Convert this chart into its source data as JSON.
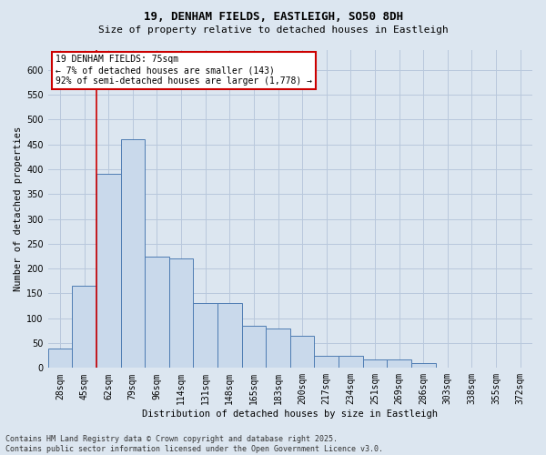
{
  "title": "19, DENHAM FIELDS, EASTLEIGH, SO50 8DH",
  "subtitle": "Size of property relative to detached houses in Eastleigh",
  "xlabel": "Distribution of detached houses by size in Eastleigh",
  "ylabel": "Number of detached properties",
  "categories": [
    "28sqm",
    "45sqm",
    "62sqm",
    "79sqm",
    "96sqm",
    "114sqm",
    "131sqm",
    "148sqm",
    "165sqm",
    "183sqm",
    "200sqm",
    "217sqm",
    "234sqm",
    "251sqm",
    "269sqm",
    "286sqm",
    "303sqm",
    "338sqm",
    "355sqm",
    "372sqm"
  ],
  "values": [
    40,
    165,
    390,
    460,
    225,
    220,
    130,
    130,
    85,
    80,
    65,
    25,
    25,
    18,
    18,
    10,
    0,
    0,
    0,
    0
  ],
  "bar_color": "#c9d9eb",
  "bar_edge_color": "#4e7cb3",
  "grid_color": "#b8c8dc",
  "background_color": "#dce6f0",
  "vline_color": "#cc0000",
  "vline_pos": 1.5,
  "annotation_text": "19 DENHAM FIELDS: 75sqm\n← 7% of detached houses are smaller (143)\n92% of semi-detached houses are larger (1,778) →",
  "annotation_box_facecolor": "#ffffff",
  "annotation_box_edgecolor": "#cc0000",
  "footer": "Contains HM Land Registry data © Crown copyright and database right 2025.\nContains public sector information licensed under the Open Government Licence v3.0.",
  "ylim": [
    0,
    640
  ],
  "yticks": [
    0,
    50,
    100,
    150,
    200,
    250,
    300,
    350,
    400,
    450,
    500,
    550,
    600
  ],
  "title_fontsize": 9,
  "subtitle_fontsize": 8,
  "axis_label_fontsize": 7.5,
  "tick_fontsize": 7,
  "annotation_fontsize": 7,
  "footer_fontsize": 6
}
